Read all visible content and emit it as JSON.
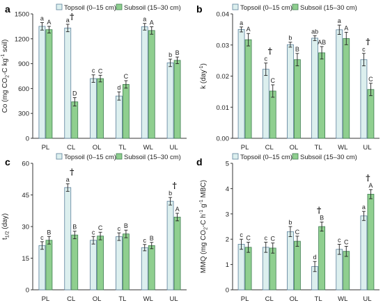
{
  "colors": {
    "topsoil": "#dcefee",
    "subsoil": "#8fcf8f",
    "topsoil_edge": "#5b7f9a",
    "subsoil_edge": "#3f7d52",
    "axis": "#333333"
  },
  "dagger_symbol": "†",
  "chart_data": [
    {
      "panel": "a",
      "type": "bar",
      "categories": [
        "PL",
        "CL",
        "OL",
        "TL",
        "WL",
        "UL"
      ],
      "ylabel_parts": [
        "Co (mg CO",
        "2",
        "-C kg",
        "-1",
        " soil)"
      ],
      "ylim": [
        0,
        1500
      ],
      "yticks": [
        "0",
        "300",
        "600",
        "900",
        "1200",
        "1500"
      ],
      "series": [
        {
          "name": "Topsoil (0–15 cm)",
          "values": [
            1350,
            1330,
            720,
            510,
            1345,
            910
          ],
          "errors": [
            45,
            45,
            45,
            50,
            40,
            45
          ],
          "letters": [
            "a",
            "a",
            "c",
            "d",
            "a",
            "b"
          ]
        },
        {
          "name": "Subsoil (15–30 cm)",
          "values": [
            1310,
            440,
            720,
            650,
            1300,
            940
          ],
          "errors": [
            40,
            50,
            40,
            45,
            45,
            40
          ],
          "letters": [
            "A",
            "D",
            "C",
            "C",
            "A",
            "B"
          ]
        }
      ],
      "dagger": [
        "CL"
      ]
    },
    {
      "panel": "b",
      "type": "bar",
      "categories": [
        "PL",
        "CL",
        "OL",
        "TL",
        "WL",
        "UL"
      ],
      "ylabel_parts": [
        "k (day",
        "-1",
        ")"
      ],
      "ylim": [
        0,
        0.04
      ],
      "yticks": [
        "0.00",
        "0.01",
        "0.02",
        "0.03",
        "0.04"
      ],
      "series": [
        {
          "name": "Topsoil (0–15 cm)",
          "values": [
            0.035,
            0.0222,
            0.0301,
            0.0322,
            0.0349,
            0.0253
          ],
          "errors": [
            0.0008,
            0.002,
            0.0008,
            0.0008,
            0.0015,
            0.002
          ],
          "letters": [
            "a",
            "c",
            "b",
            "ab",
            "a",
            "c"
          ]
        },
        {
          "name": "Subsoil (15–30 cm)",
          "values": [
            0.0317,
            0.0152,
            0.0253,
            0.0275,
            0.0321,
            0.0157
          ],
          "errors": [
            0.002,
            0.002,
            0.002,
            0.002,
            0.002,
            0.002
          ],
          "letters": [
            "A",
            "C",
            "B",
            "AB",
            "A",
            "C"
          ]
        }
      ],
      "dagger": [
        "CL",
        "UL"
      ]
    },
    {
      "panel": "c",
      "type": "bar",
      "categories": [
        "PL",
        "CL",
        "OL",
        "TL",
        "WL",
        "UL"
      ],
      "ylabel_parts": [
        "t",
        "1/2",
        " (day)"
      ],
      "ylim": [
        0,
        60
      ],
      "yticks": [
        "0",
        "15",
        "30",
        "45",
        "60"
      ],
      "series": [
        {
          "name": "Topsoil (0–15 cm)",
          "values": [
            21,
            48.5,
            23.5,
            25.2,
            20,
            42
          ],
          "errors": [
            1.8,
            1.8,
            1.8,
            1.8,
            1.5,
            1.8
          ],
          "letters": [
            "c",
            "a",
            "c",
            "c",
            "c",
            "b"
          ]
        },
        {
          "name": "Subsoil (15–30 cm)",
          "values": [
            23.5,
            26,
            25.5,
            26.5,
            21,
            34.5
          ],
          "errors": [
            1.8,
            1.8,
            1.8,
            1.8,
            1.5,
            1.8
          ],
          "letters": [
            "B",
            "B",
            "C",
            "B",
            "B",
            "A"
          ]
        }
      ],
      "dagger": [
        "CL",
        "UL"
      ]
    },
    {
      "panel": "d",
      "type": "bar",
      "categories": [
        "PL",
        "CL",
        "OL",
        "TL",
        "WL",
        "UL"
      ],
      "ylabel_parts": [
        "MMQ (mg CO",
        "2",
        "-C h",
        "-1",
        " g",
        "-1",
        " MBC)"
      ],
      "ylim": [
        0,
        5
      ],
      "yticks": [
        "0",
        "1",
        "2",
        "3",
        "4",
        "5"
      ],
      "series": [
        {
          "name": "Topsoil (0–15 cm)",
          "values": [
            1.8,
            1.68,
            2.3,
            0.92,
            1.6,
            2.92
          ],
          "errors": [
            0.2,
            0.2,
            0.2,
            0.2,
            0.2,
            0.18
          ],
          "letters": [
            "c",
            "c",
            "b",
            "d",
            "c",
            "a"
          ]
        },
        {
          "name": "Subsoil (15–30 cm)",
          "values": [
            1.68,
            1.65,
            1.92,
            2.5,
            1.52,
            3.78
          ],
          "errors": [
            0.2,
            0.2,
            0.2,
            0.18,
            0.2,
            0.18
          ],
          "letters": [
            "C",
            "C",
            "C",
            "B",
            "C",
            "A"
          ]
        }
      ],
      "dagger": [
        "TL",
        "UL"
      ]
    }
  ]
}
